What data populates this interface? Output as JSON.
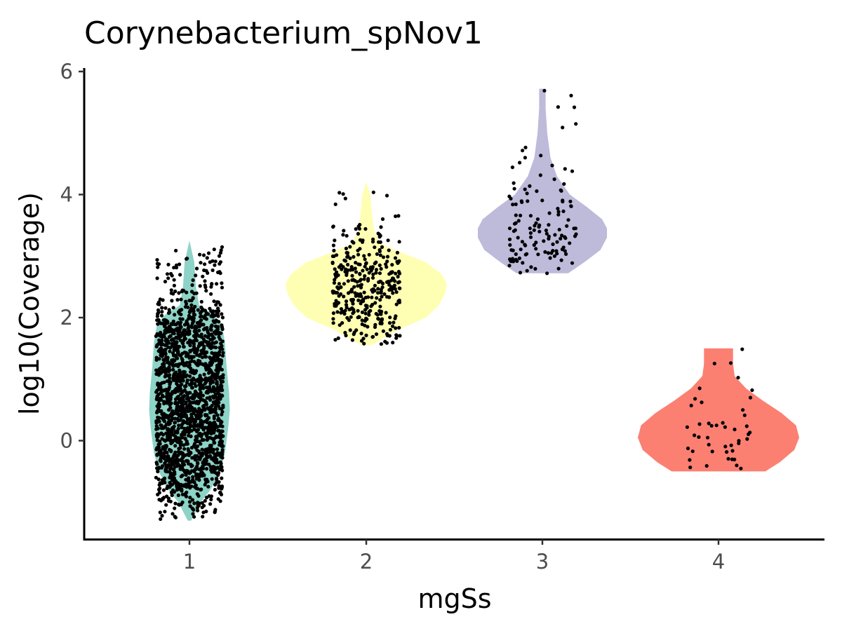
{
  "chart_data": {
    "type": "violin",
    "title": "Corynebacterium_spNov1",
    "xlabel": "mgSs",
    "ylabel": "log10(Coverage)",
    "categories": [
      "1",
      "2",
      "3",
      "4"
    ],
    "y_ticks": [
      "0",
      "2",
      "4",
      "6"
    ],
    "ylim": [
      -1.6,
      6.05
    ],
    "grid": false,
    "legend": "none",
    "groups": [
      {
        "category": "1",
        "color": "#8dd3c7",
        "min": -1.3,
        "max": 3.25,
        "n_points": 1800,
        "density": [
          [
            -1.3,
            0.02
          ],
          [
            -1.0,
            0.14
          ],
          [
            -0.8,
            0.26
          ],
          [
            -0.5,
            0.38
          ],
          [
            -0.2,
            0.44
          ],
          [
            0.2,
            0.48
          ],
          [
            0.5,
            0.5
          ],
          [
            0.8,
            0.49
          ],
          [
            1.2,
            0.46
          ],
          [
            1.6,
            0.44
          ],
          [
            1.9,
            0.4
          ],
          [
            2.05,
            0.3
          ],
          [
            2.2,
            0.12
          ],
          [
            2.5,
            0.08
          ],
          [
            2.9,
            0.06
          ],
          [
            3.25,
            0.0
          ]
        ]
      },
      {
        "category": "2",
        "color": "#ffffb3",
        "min": 1.55,
        "max": 4.2,
        "n_points": 350,
        "density": [
          [
            1.55,
            0.06
          ],
          [
            1.8,
            0.4
          ],
          [
            2.0,
            0.74
          ],
          [
            2.2,
            0.9
          ],
          [
            2.4,
            0.98
          ],
          [
            2.55,
            1.0
          ],
          [
            2.7,
            0.94
          ],
          [
            2.9,
            0.74
          ],
          [
            3.05,
            0.45
          ],
          [
            3.2,
            0.18
          ],
          [
            3.4,
            0.1
          ],
          [
            3.7,
            0.07
          ],
          [
            4.0,
            0.05
          ],
          [
            4.2,
            0.0
          ]
        ]
      },
      {
        "category": "3",
        "color": "#bebada",
        "min": 2.72,
        "max": 5.72,
        "n_points": 130,
        "density": [
          [
            2.72,
            0.32
          ],
          [
            2.9,
            0.52
          ],
          [
            3.1,
            0.72
          ],
          [
            3.3,
            0.8
          ],
          [
            3.45,
            0.8
          ],
          [
            3.6,
            0.74
          ],
          [
            3.8,
            0.55
          ],
          [
            4.0,
            0.34
          ],
          [
            4.3,
            0.18
          ],
          [
            4.6,
            0.1
          ],
          [
            5.0,
            0.06
          ],
          [
            5.4,
            0.04
          ],
          [
            5.72,
            0.04
          ]
        ]
      },
      {
        "category": "4",
        "color": "#fb8072",
        "min": -0.5,
        "max": 1.5,
        "n_points": 45,
        "density": [
          [
            -0.5,
            0.58
          ],
          [
            -0.35,
            0.76
          ],
          [
            -0.15,
            0.94
          ],
          [
            0.05,
            1.0
          ],
          [
            0.25,
            0.96
          ],
          [
            0.45,
            0.78
          ],
          [
            0.65,
            0.55
          ],
          [
            0.85,
            0.34
          ],
          [
            1.05,
            0.2
          ],
          [
            1.25,
            0.18
          ],
          [
            1.5,
            0.18
          ]
        ]
      }
    ]
  }
}
